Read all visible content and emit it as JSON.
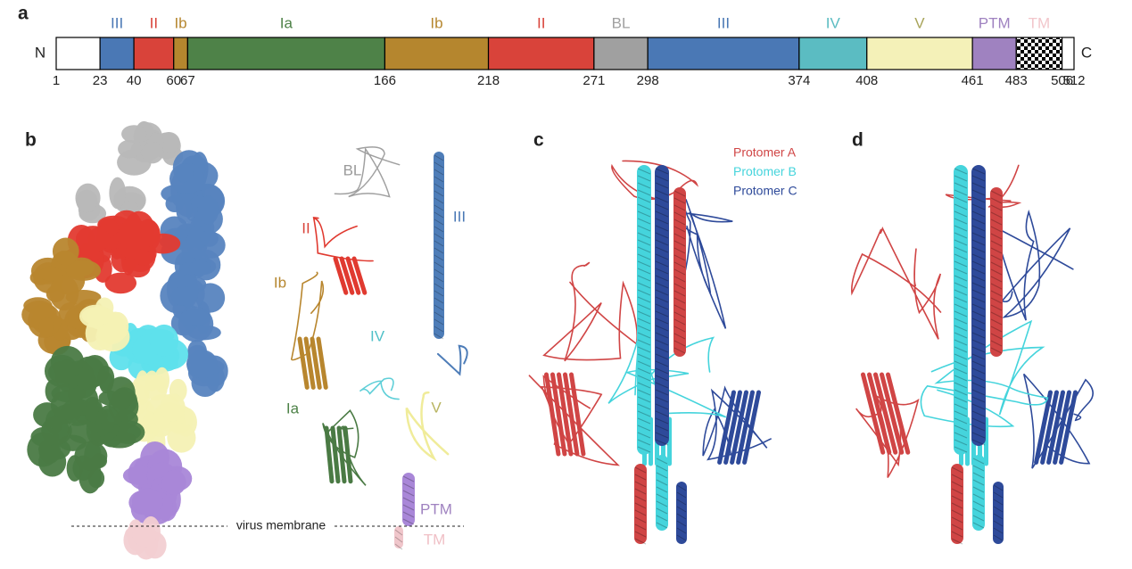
{
  "figure": {
    "panel_a": {
      "letter": "a",
      "n_label": "N",
      "c_label": "C",
      "boundaries": [
        1,
        23,
        40,
        60,
        67,
        166,
        218,
        271,
        298,
        374,
        408,
        461,
        483,
        506,
        512
      ],
      "segments": [
        {
          "label": null,
          "color": "#ffffff"
        },
        {
          "label": "III",
          "color": "#4a78b5"
        },
        {
          "label": "II",
          "color": "#d9433a"
        },
        {
          "label": "Ib",
          "color": "#b5862e"
        },
        {
          "label": "Ia",
          "color": "#4e8248"
        },
        {
          "label": "Ib",
          "color": "#b5862e"
        },
        {
          "label": "II",
          "color": "#d9433a"
        },
        {
          "label": "BL",
          "color": "#a0a0a0"
        },
        {
          "label": "III",
          "color": "#4a78b5"
        },
        {
          "label": "IV",
          "color": "#5bbcc2"
        },
        {
          "label": "V",
          "color": "#f4f1b8",
          "label_color": "#a8a45a"
        },
        {
          "label": "PTM",
          "color": "#9f82c0"
        },
        {
          "label": "TM",
          "color": "#f2c6cb",
          "pattern": "checkerboard"
        },
        {
          "label": null,
          "color": "#ffffff"
        }
      ]
    },
    "panel_b": {
      "letter": "b",
      "labels": [
        {
          "text": "BL",
          "color": "#9a9a9a"
        },
        {
          "text": "II",
          "color": "#d9433a"
        },
        {
          "text": "III",
          "color": "#4a78b5"
        },
        {
          "text": "Ib",
          "color": "#b5862e"
        },
        {
          "text": "IV",
          "color": "#4fc0c8"
        },
        {
          "text": "Ia",
          "color": "#4e8248"
        },
        {
          "text": "V",
          "color": "#b8b460"
        },
        {
          "text": "PTM",
          "color": "#9f82c0"
        },
        {
          "text": "TM",
          "color": "#f0c0c6"
        }
      ],
      "membrane_label": "virus membrane"
    },
    "panel_c": {
      "letter": "c",
      "protomers": [
        {
          "name": "Protomer A",
          "color": "#d04545"
        },
        {
          "name": "Protomer B",
          "color": "#45d4dc"
        },
        {
          "name": "Protomer C",
          "color": "#2e4a9a"
        }
      ]
    },
    "panel_d": {
      "letter": "d"
    }
  }
}
